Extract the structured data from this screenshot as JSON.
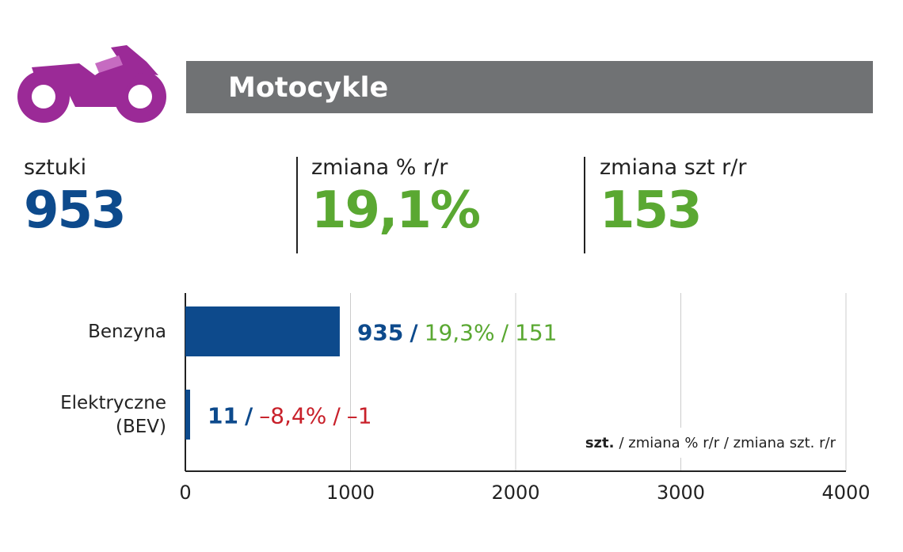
{
  "header": {
    "title": "Motocykle"
  },
  "stats": [
    {
      "label": "sztuki",
      "value": "953",
      "color": "#0d4a8c"
    },
    {
      "label": "zmiana % r/r",
      "value": "19,1%",
      "color": "#5aa832"
    },
    {
      "label": "zmiana szt r/r",
      "value": "153",
      "color": "#5aa832"
    }
  ],
  "chart_data": {
    "type": "bar",
    "orientation": "horizontal",
    "categories": [
      "Benzyna",
      "Elektryczne (BEV)"
    ],
    "values": [
      935,
      11
    ],
    "change_pct": [
      19.3,
      -8.4
    ],
    "change_pct_labels": [
      "19,3%",
      "–8,4%"
    ],
    "change_units": [
      151,
      -1
    ],
    "change_units_labels": [
      "151",
      "–1"
    ],
    "separator": "/",
    "color": "#0d4a8c",
    "positive_color": "#5aa832",
    "negative_color": "#c8202a",
    "xlim": [
      0,
      4000
    ],
    "xticks": [
      0,
      1000,
      2000,
      3000,
      4000
    ],
    "grid": true,
    "legend_note": {
      "bold": "szt.",
      "text": "/ zmiana % r/r / zmiana szt. r/r"
    }
  }
}
